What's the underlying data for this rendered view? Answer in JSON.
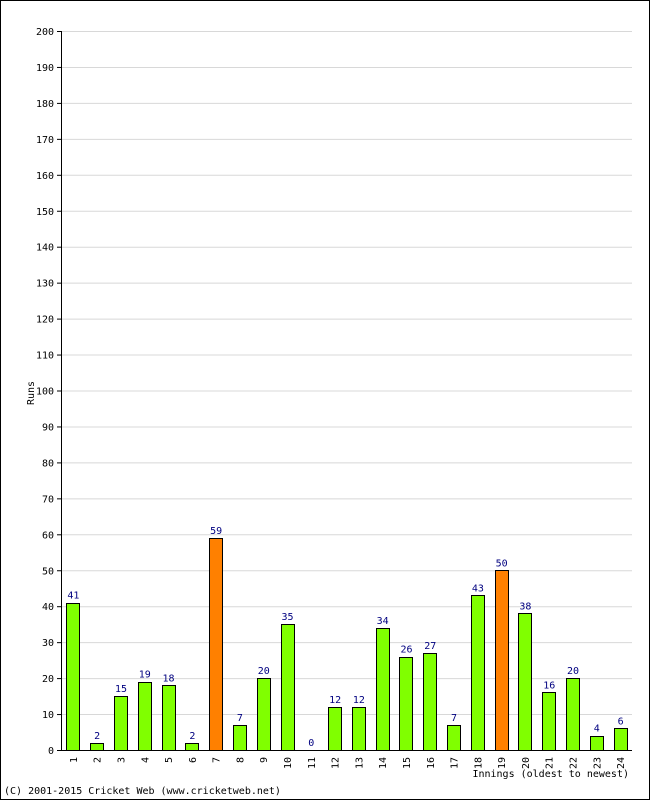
{
  "chart_data": {
    "type": "bar",
    "categories": [
      "1",
      "2",
      "3",
      "4",
      "5",
      "6",
      "7",
      "8",
      "9",
      "10",
      "11",
      "12",
      "13",
      "14",
      "15",
      "16",
      "17",
      "18",
      "19",
      "20",
      "21",
      "22",
      "23",
      "24"
    ],
    "values": [
      41,
      2,
      15,
      19,
      18,
      2,
      59,
      7,
      20,
      35,
      0,
      12,
      12,
      34,
      26,
      27,
      7,
      43,
      50,
      38,
      16,
      20,
      4,
      6
    ],
    "highlight": [
      false,
      false,
      false,
      false,
      false,
      false,
      true,
      false,
      false,
      false,
      false,
      false,
      false,
      false,
      false,
      false,
      false,
      false,
      true,
      false,
      false,
      false,
      false,
      false
    ],
    "ylabel": "Runs",
    "xlabel": "Innings (oldest to newest)",
    "ylim": [
      0,
      200
    ],
    "ytick_step": 10,
    "grid": true,
    "colors": {
      "bar": "#80ff00",
      "highlight": "#ff8000",
      "outline": "#000000",
      "grid": "#d8d8d8",
      "data_label": "#000080"
    }
  },
  "footer": {
    "credit": "(C) 2001-2015 Cricket Web (www.cricketweb.net)"
  }
}
